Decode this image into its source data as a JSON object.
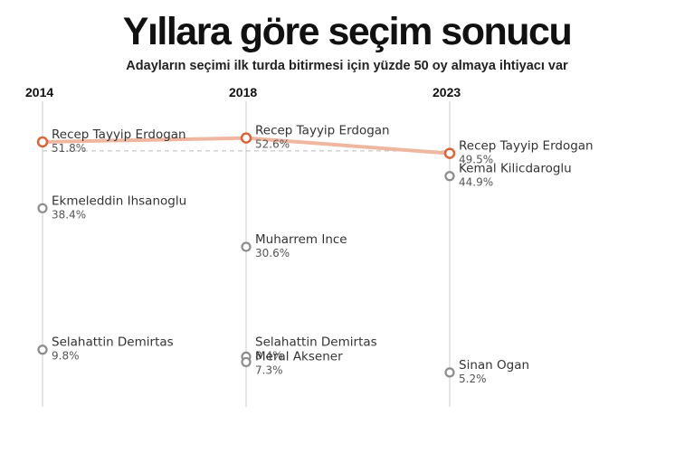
{
  "title": "Yıllara göre seçim sonucu",
  "subtitle": "Adayların seçimi ilk turda bitirmesi için yüzde 50 oy almaya ihtiyacı var",
  "colors": {
    "winner": "#d9653b",
    "winner_line": "#f0b7a0",
    "other": "#8c8c8c",
    "axis": "#cccccc",
    "threshold": "#bbbbbb"
  },
  "chart_data": {
    "type": "line",
    "title": "Yıllara göre seçim sonucu",
    "subtitle": "Adayların seçimi ilk turda bitirmesi için yüzde 50 oy almaya ihtiyacı var",
    "x": [
      "2014",
      "2018",
      "2023"
    ],
    "threshold": 50,
    "grid": false,
    "series": [
      {
        "name": "Recep Tayyip Erdogan",
        "values": [
          51.8,
          52.6,
          49.5
        ],
        "labels": [
          "51.8%",
          "52.6%",
          "49.5%"
        ],
        "highlight": true
      },
      {
        "name": "Ekmeleddin Ihsanoglu",
        "values": [
          38.4,
          null,
          null
        ],
        "labels": [
          "38.4%",
          null,
          null
        ]
      },
      {
        "name": "Selahattin Demirtas",
        "values": [
          9.8,
          8.4,
          null
        ],
        "labels": [
          "9.8%",
          "8.4%",
          null
        ]
      },
      {
        "name": "Muharrem Ince",
        "values": [
          null,
          30.6,
          null
        ],
        "labels": [
          null,
          "30.6%",
          null
        ]
      },
      {
        "name": "Meral Aksener",
        "values": [
          null,
          7.3,
          null
        ],
        "labels": [
          null,
          "7.3%",
          null
        ]
      },
      {
        "name": "Kemal Kilicdaroglu",
        "values": [
          null,
          null,
          44.9
        ],
        "labels": [
          null,
          null,
          "44.9%"
        ]
      },
      {
        "name": "Sinan Ogan",
        "values": [
          null,
          null,
          5.2
        ],
        "labels": [
          null,
          null,
          "5.2%"
        ]
      }
    ]
  }
}
